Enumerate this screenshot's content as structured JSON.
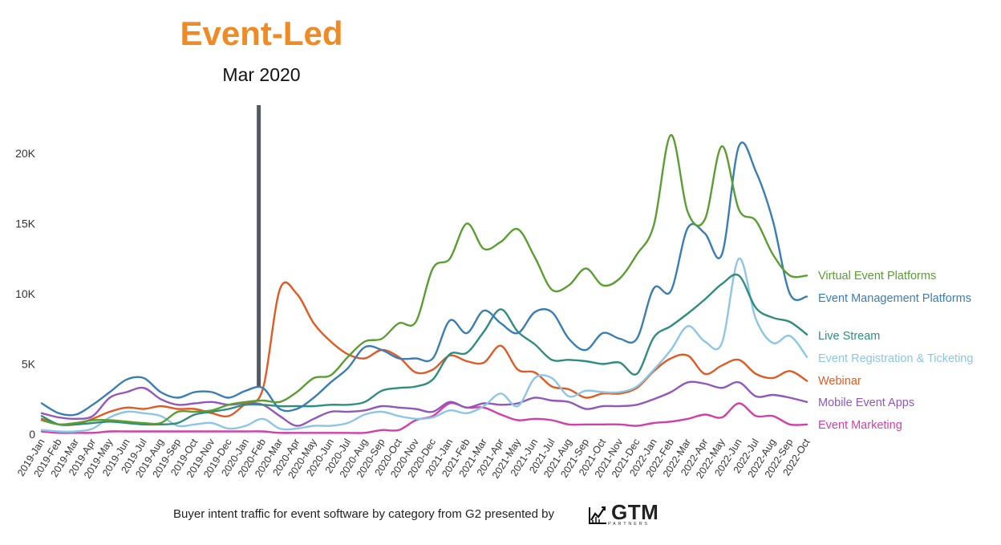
{
  "header": {
    "title": "Event-Led",
    "subtitle": "Mar 2020"
  },
  "caption": "Buyer intent traffic for event software by category from G2 presented by",
  "logo": {
    "wordmark": "GTM",
    "subtext": "PARTNERS"
  },
  "chart_data": {
    "type": "line",
    "title": "Event-Led",
    "subtitle": "Mar 2020",
    "xlabel": "",
    "ylabel": "",
    "ylim": [
      0,
      23000
    ],
    "yticks": [
      0,
      5000,
      10000,
      15000,
      20000
    ],
    "ytick_labels": [
      "0",
      "5K",
      "10K",
      "15K",
      "20K"
    ],
    "grid": false,
    "legend": "right-end labels",
    "x": [
      "2019-Jan",
      "2019-Feb",
      "2019-Mar",
      "2019-Apr",
      "2019-May",
      "2019-Jun",
      "2019-Jul",
      "2019-Aug",
      "2019-Sep",
      "2019-Oct",
      "2019-Nov",
      "2019-Dec",
      "2020-Jan",
      "2020-Feb",
      "2020-Mar",
      "2020-Apr",
      "2020-May",
      "2020-Jun",
      "2020-Jul",
      "2020-Aug",
      "2020-Sep",
      "2020-Oct",
      "2020-Nov",
      "2020-Dec",
      "2021-Jan",
      "2021-Feb",
      "2021-Mar",
      "2021-Apr",
      "2021-May",
      "2021-Jun",
      "2021-Jul",
      "2021-Aug",
      "2021-Sep",
      "2021-Oct",
      "2021-Nov",
      "2021-Dec",
      "2022-Jan",
      "2022-Feb",
      "2022-Mar",
      "2022-Apr",
      "2022-May",
      "2022-Jun",
      "2022-Jul",
      "2022-Aug",
      "2022-Sep",
      "2022-Oct"
    ],
    "annotation": {
      "label": "Mar 2020",
      "at": "2020-Feb",
      "color": "#555a60"
    },
    "series": [
      {
        "name": "Virtual Event Platforms",
        "color": "#5a9e32",
        "values": [
          1000,
          700,
          800,
          1000,
          1000,
          900,
          800,
          800,
          1600,
          1600,
          1700,
          2100,
          2300,
          2400,
          2300,
          3000,
          4000,
          4200,
          5500,
          6600,
          6800,
          7900,
          8000,
          11800,
          12500,
          15000,
          13200,
          13700,
          14600,
          12600,
          10300,
          10600,
          11800,
          10600,
          11100,
          12800,
          14900,
          21300,
          15800,
          15300,
          20500,
          16000,
          15200,
          12800,
          11300,
          11300
        ]
      },
      {
        "name": "Event Management Platforms",
        "color": "#3a7db5",
        "values": [
          2200,
          1500,
          1400,
          2100,
          3000,
          3900,
          4000,
          3000,
          2600,
          3000,
          3000,
          2600,
          3100,
          3300,
          1800,
          1800,
          2600,
          3700,
          4700,
          6200,
          6000,
          5400,
          5400,
          5400,
          8100,
          7200,
          8800,
          7900,
          7200,
          8700,
          8700,
          6800,
          6000,
          7200,
          6800,
          6800,
          10400,
          10200,
          14700,
          14300,
          12800,
          20500,
          18700,
          15200,
          10000,
          9800
        ]
      },
      {
        "name": "Live Stream",
        "color": "#2f8d7e",
        "values": [
          1300,
          700,
          700,
          800,
          900,
          800,
          700,
          700,
          800,
          1400,
          1600,
          1800,
          2100,
          2100,
          2000,
          2000,
          2000,
          2100,
          2100,
          2300,
          3100,
          3300,
          3400,
          3900,
          5700,
          5800,
          7300,
          8900,
          7300,
          6400,
          5300,
          5300,
          5200,
          5000,
          5100,
          4300,
          6900,
          7700,
          8600,
          9600,
          10700,
          11300,
          9000,
          8300,
          8000,
          7100
        ]
      },
      {
        "name": "Event Registration & Ticketing",
        "color": "#8cc6e6",
        "values": [
          300,
          200,
          200,
          400,
          1200,
          1600,
          1500,
          1300,
          600,
          700,
          800,
          400,
          600,
          1100,
          400,
          400,
          600,
          600,
          800,
          1400,
          1600,
          1300,
          1100,
          1200,
          1700,
          1500,
          2000,
          2900,
          2000,
          4000,
          4000,
          2700,
          3100,
          3000,
          3000,
          3400,
          4600,
          6000,
          7700,
          6600,
          6500,
          12500,
          8200,
          6500,
          7000,
          5500
        ]
      },
      {
        "name": "Webinar",
        "color": "#e05a24",
        "values": [
          1100,
          700,
          700,
          1100,
          1600,
          1900,
          1800,
          2000,
          1800,
          1800,
          1500,
          1300,
          2200,
          3200,
          10300,
          10000,
          7900,
          6600,
          5700,
          5400,
          6000,
          5500,
          4400,
          4600,
          5600,
          5200,
          5100,
          6300,
          4600,
          4400,
          3400,
          3200,
          2600,
          2900,
          2900,
          3300,
          4500,
          5400,
          5600,
          4300,
          4900,
          5300,
          4300,
          4000,
          4500,
          3800
        ]
      },
      {
        "name": "Mobile Event Apps",
        "color": "#9257bb",
        "values": [
          1500,
          1200,
          1100,
          1300,
          2600,
          3000,
          3300,
          2500,
          2100,
          2200,
          2300,
          2100,
          2200,
          2100,
          1300,
          600,
          1100,
          1600,
          1600,
          1700,
          2000,
          1900,
          1800,
          1600,
          2300,
          1900,
          2200,
          2100,
          2200,
          2600,
          2400,
          2300,
          1800,
          2000,
          2000,
          2100,
          2500,
          3000,
          3700,
          3600,
          3300,
          3700,
          2700,
          2800,
          2600,
          2300
        ]
      },
      {
        "name": "Event Marketing",
        "color": "#d43ea8",
        "values": [
          200,
          100,
          100,
          100,
          200,
          200,
          200,
          200,
          200,
          200,
          200,
          200,
          200,
          200,
          100,
          100,
          100,
          100,
          100,
          100,
          300,
          300,
          1000,
          1300,
          2200,
          1900,
          1900,
          1400,
          1000,
          1100,
          1000,
          700,
          700,
          700,
          700,
          600,
          800,
          900,
          1100,
          1400,
          1200,
          2200,
          1300,
          1300,
          700,
          700
        ]
      }
    ]
  }
}
